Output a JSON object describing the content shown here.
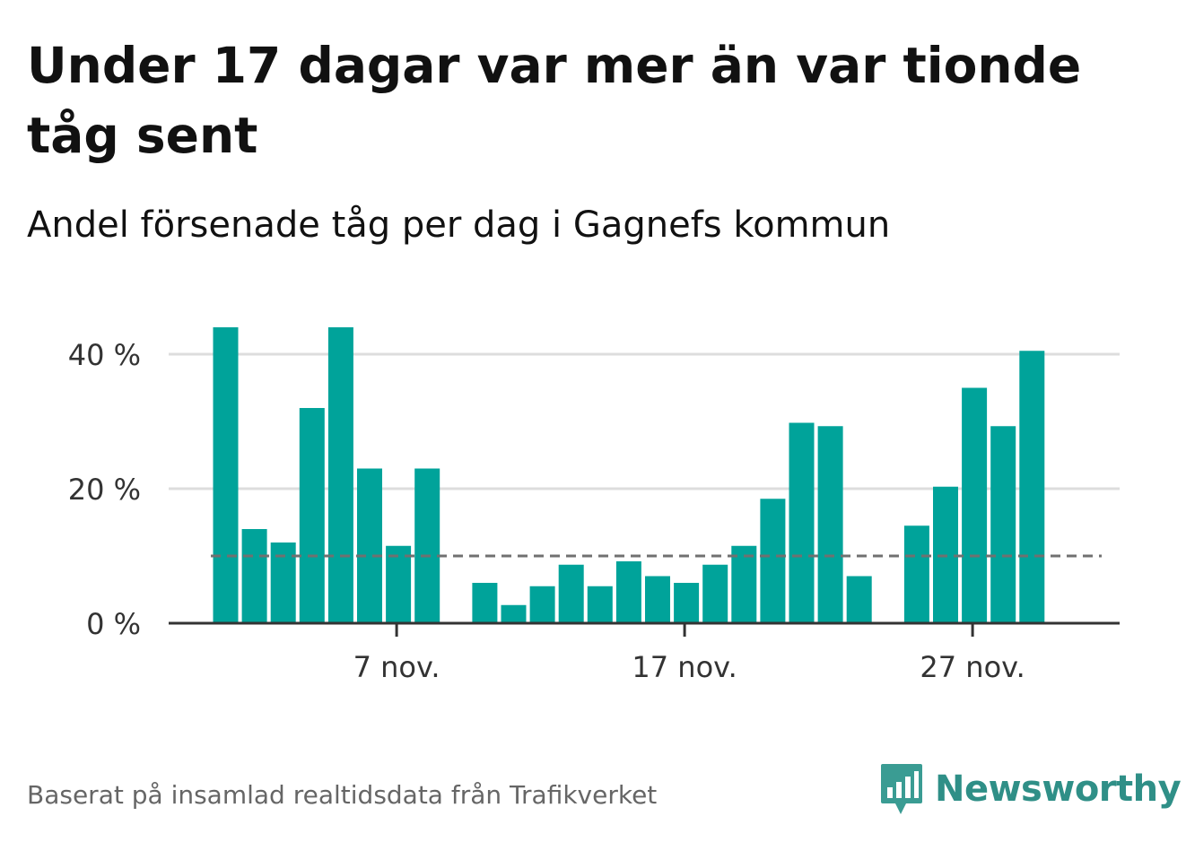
{
  "title": "Under 17 dagar var mer än var tionde tåg sent",
  "subtitle": "Andel försenade tåg per dag i Gagnefs kommun",
  "footer": "Baserat på insamlad realtidsdata från Trafikverket",
  "brand": "Newsworthy",
  "colors": {
    "bar": "#00a39a",
    "reference_line": "#707070",
    "grid": "#dddddd",
    "axis": "#333333",
    "brand": "#2f8f87"
  },
  "chart_data": {
    "type": "bar",
    "days": [
      1,
      2,
      3,
      4,
      5,
      6,
      7,
      8,
      9,
      10,
      11,
      12,
      13,
      14,
      15,
      16,
      17,
      18,
      19,
      20,
      21,
      22,
      23,
      24,
      25,
      26,
      27,
      28,
      29,
      30
    ],
    "values": [
      44,
      14,
      12,
      32,
      44,
      23,
      11.5,
      23,
      null,
      6,
      2.7,
      5.5,
      8.7,
      5.5,
      9.2,
      7,
      6,
      8.7,
      11.5,
      18.5,
      29.8,
      29.3,
      7,
      null,
      14.5,
      20.3,
      35,
      29.3,
      40.5,
      null
    ],
    "reference_value": 10,
    "ylim": [
      0,
      44
    ],
    "yticks": [
      0,
      20,
      40
    ],
    "ytick_labels": [
      "0 %",
      "20 %",
      "40 %"
    ],
    "xticks": [
      7,
      17,
      27
    ],
    "xtick_labels": [
      "7 nov.",
      "17 nov.",
      "27 nov."
    ],
    "grid": true,
    "legend": "none"
  }
}
